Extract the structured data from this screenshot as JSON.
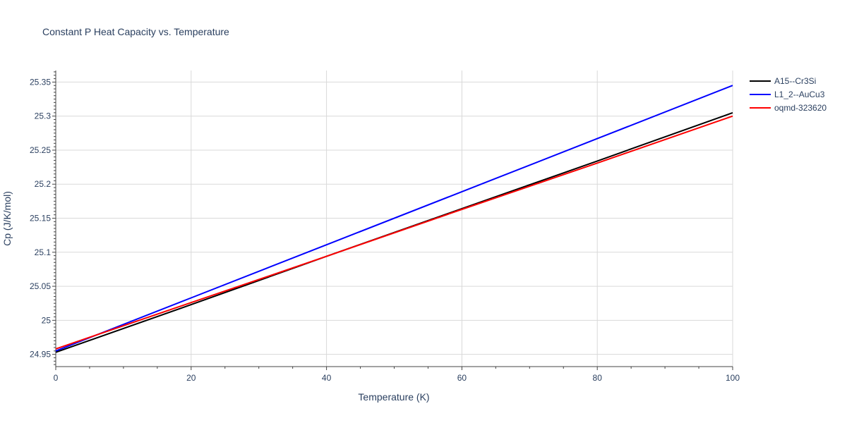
{
  "chart_data": {
    "type": "line",
    "title": "Constant P Heat Capacity vs. Temperature",
    "xlabel": "Temperature (K)",
    "ylabel": "Cp (J/K/mol)",
    "xlim": [
      0,
      100
    ],
    "ylim": [
      24.932,
      25.367
    ],
    "x_ticks": [
      0,
      20,
      40,
      60,
      80,
      100
    ],
    "x_tick_labels": [
      "0",
      "20",
      "40",
      "60",
      "80",
      "100"
    ],
    "y_ticks": [
      24.95,
      25.0,
      25.05,
      25.1,
      25.15,
      25.2,
      25.25,
      25.3,
      25.35
    ],
    "y_tick_labels": [
      "24.95",
      "25",
      "25.05",
      "25.1",
      "25.15",
      "25.2",
      "25.25",
      "25.3",
      "25.35"
    ],
    "grid": true,
    "legend_position": "top-right",
    "series": [
      {
        "name": "A15--Cr3Si",
        "color": "#000000",
        "x": [
          0,
          20,
          40,
          60,
          80,
          100
        ],
        "y": [
          24.953,
          25.023,
          25.094,
          25.164,
          25.234,
          25.305
        ]
      },
      {
        "name": "L1_2--AuCu3",
        "color": "#0000ff",
        "x": [
          0,
          20,
          40,
          60,
          80,
          100
        ],
        "y": [
          24.955,
          25.033,
          25.111,
          25.189,
          25.267,
          25.345
        ]
      },
      {
        "name": "oqmd-323620",
        "color": "#ff0000",
        "x": [
          0,
          20,
          40,
          60,
          80,
          100
        ],
        "y": [
          24.958,
          25.026,
          25.094,
          25.163,
          25.231,
          25.3
        ]
      }
    ]
  }
}
